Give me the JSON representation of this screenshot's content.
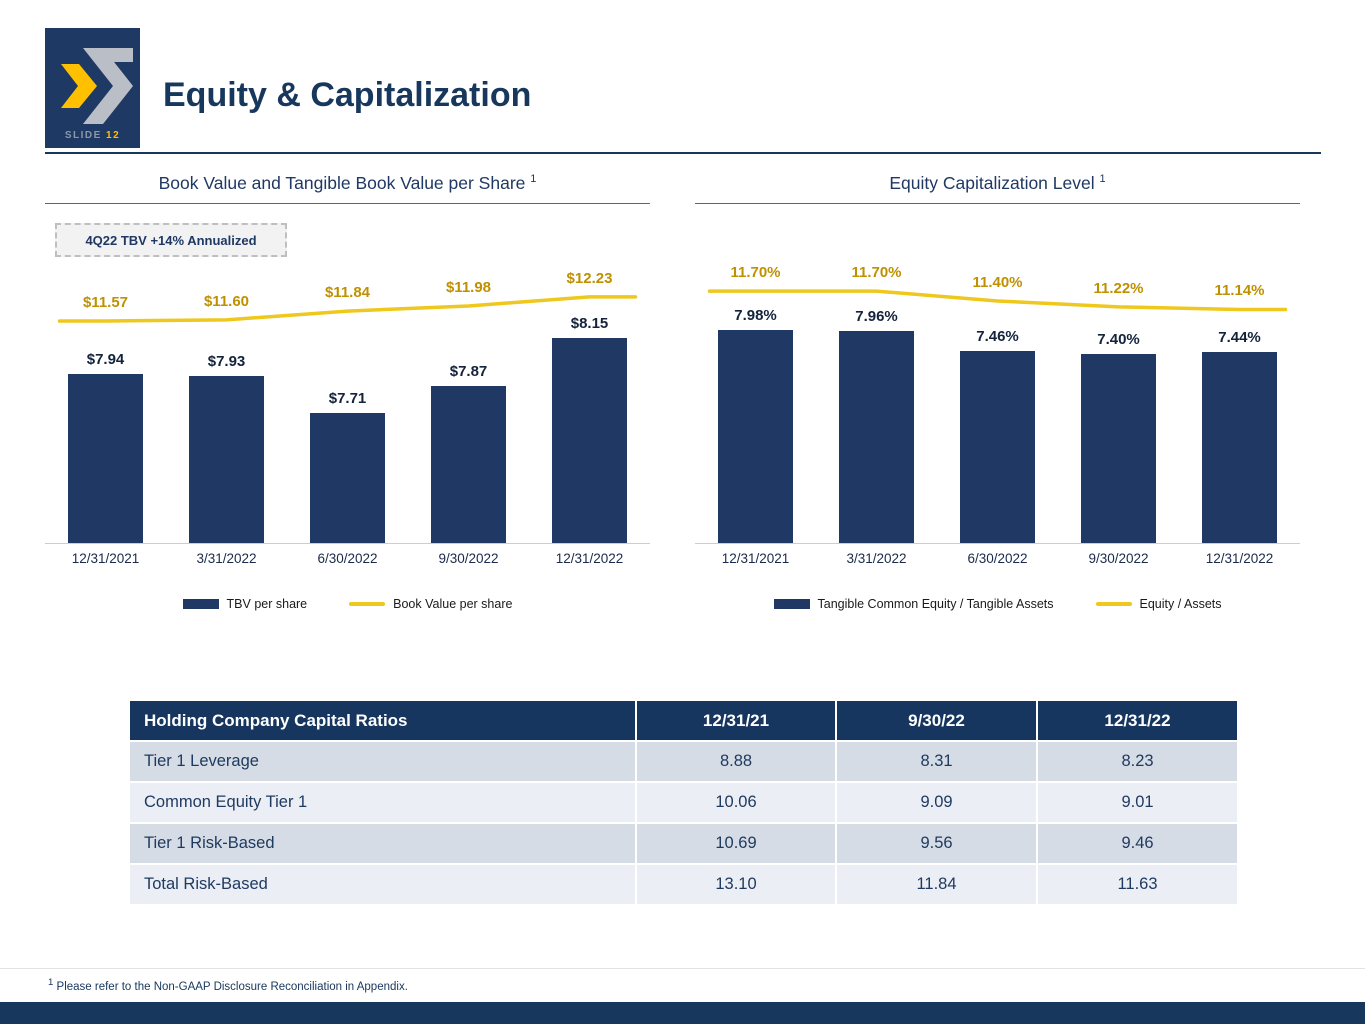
{
  "header": {
    "slide_label": "SLIDE",
    "slide_number": "12",
    "title": "Equity & Capitalization"
  },
  "colors": {
    "navy": "#1f3864",
    "gold": "#eec81c",
    "gold_text": "#bf9000",
    "table_header": "#16365f"
  },
  "chart_data": [
    {
      "type": "bar",
      "title": "Book Value and Tangible Book Value per Share",
      "title_sup": "1",
      "annotation": "4Q22 TBV +14% Annualized",
      "categories": [
        "12/31/2021",
        "3/31/2022",
        "6/30/2022",
        "9/30/2022",
        "12/31/2022"
      ],
      "series": [
        {
          "name": "TBV per share",
          "type": "bar",
          "values": [
            7.94,
            7.93,
            7.71,
            7.87,
            8.15
          ],
          "labels": [
            "$7.94",
            "$7.93",
            "$7.71",
            "$7.87",
            "$8.15"
          ]
        },
        {
          "name": "Book Value per share",
          "type": "line",
          "values": [
            11.57,
            11.6,
            11.84,
            11.98,
            12.23
          ],
          "labels": [
            "$11.57",
            "$11.60",
            "$11.84",
            "$11.98",
            "$12.23"
          ]
        }
      ],
      "bar_ylim": [
        6.95,
        8.58
      ],
      "line_ylim": [
        5.5,
        13.1
      ],
      "grid": false,
      "legend_position": "bottom"
    },
    {
      "type": "bar",
      "title": "Equity Capitalization Level",
      "title_sup": "1",
      "categories": [
        "12/31/2021",
        "3/31/2022",
        "6/30/2022",
        "9/30/2022",
        "12/31/2022"
      ],
      "series": [
        {
          "name": "Tangible Common Equity / Tangible Assets",
          "type": "bar",
          "values": [
            7.98,
            7.96,
            7.46,
            7.4,
            7.44
          ],
          "labels": [
            "7.98%",
            "7.96%",
            "7.46%",
            "7.40%",
            "7.44%"
          ]
        },
        {
          "name": "Equity / Assets",
          "type": "line",
          "values": [
            11.7,
            11.7,
            11.4,
            11.22,
            11.14
          ],
          "labels": [
            "11.70%",
            "11.70%",
            "11.40%",
            "11.22%",
            "11.14%"
          ]
        }
      ],
      "bar_ylim": [
        2.7,
        9.6
      ],
      "line_ylim": [
        4.0,
        12.5
      ],
      "grid": false,
      "legend_position": "bottom"
    }
  ],
  "table": {
    "title": "Holding Company Capital Ratios",
    "columns": [
      "12/31/21",
      "9/30/22",
      "12/31/22"
    ],
    "rows": [
      {
        "label": "Tier 1 Leverage",
        "values": [
          "8.88",
          "8.31",
          "8.23"
        ]
      },
      {
        "label": "Common Equity Tier 1",
        "values": [
          "10.06",
          "9.09",
          "9.01"
        ]
      },
      {
        "label": "Tier 1 Risk-Based",
        "values": [
          "10.69",
          "9.56",
          "9.46"
        ]
      },
      {
        "label": "Total Risk-Based",
        "values": [
          "13.10",
          "11.84",
          "11.63"
        ]
      }
    ]
  },
  "footnote": {
    "sup": "1",
    "text": "Please refer to the Non-GAAP Disclosure Reconciliation in Appendix."
  }
}
